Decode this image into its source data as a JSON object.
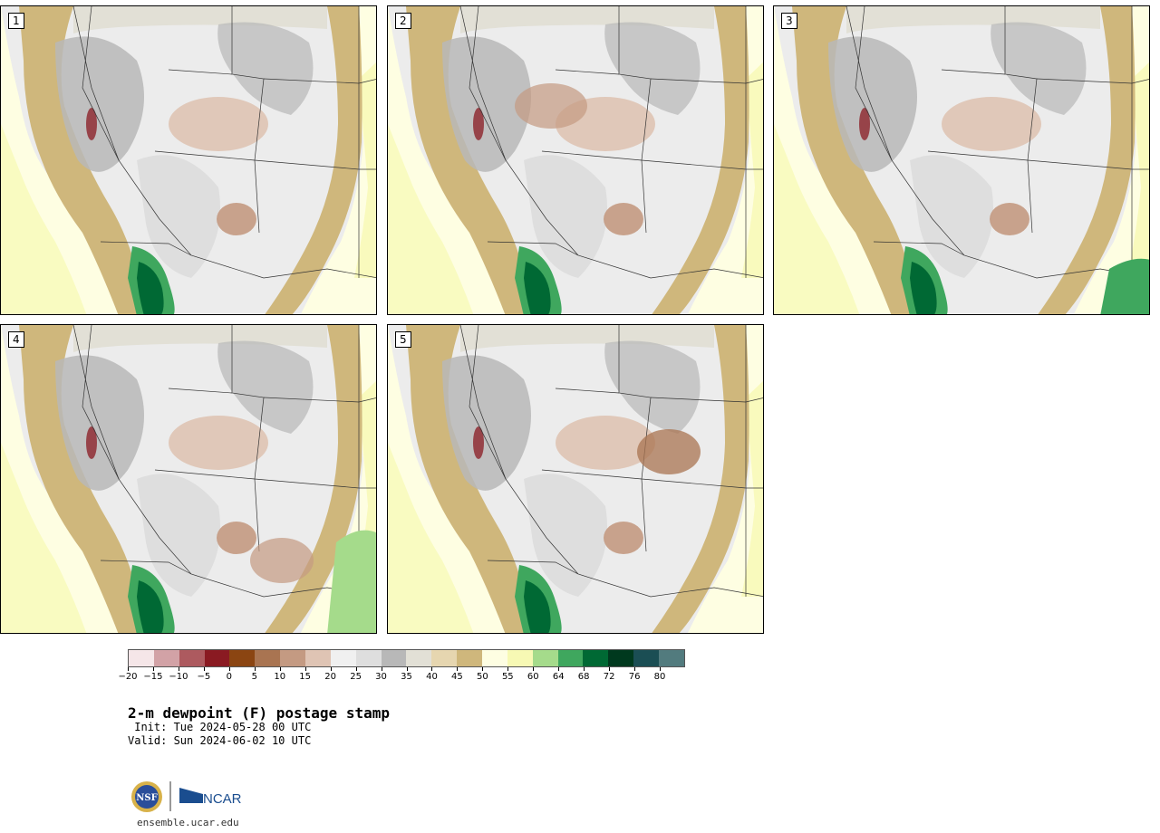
{
  "title": "2-m dewpoint (F) postage stamp",
  "init_text": " Init: Tue 2024-05-28 00 UTC",
  "valid_text": "Valid: Sun 2024-06-02 10 UTC",
  "footer_url": "ensemble.ucar.edu",
  "logo_nsf_text": "NSF",
  "logo_ncar_text": "NCAR",
  "panels": [
    {
      "label": "1"
    },
    {
      "label": "2"
    },
    {
      "label": "3"
    },
    {
      "label": "4"
    },
    {
      "label": "5"
    }
  ],
  "colorbar": {
    "colors": [
      "#f5e6e8",
      "#d2a2a6",
      "#ad5a5f",
      "#8a1a22",
      "#8b4512",
      "#a97451",
      "#c49a82",
      "#dfc4b4",
      "#f0f0f0",
      "#dedede",
      "#b8b8b8",
      "#e2e0d6",
      "#e6d6b0",
      "#cfb77c",
      "#fefee2",
      "#f7f9b4",
      "#a5db8b",
      "#3fa75e",
      "#006934",
      "#00391e",
      "#1b4e54",
      "#527b7e"
    ],
    "tick_labels": [
      "−20",
      "−15",
      "−10",
      "−5",
      "0",
      "5",
      "10",
      "15",
      "20",
      "25",
      "30",
      "35",
      "40",
      "45",
      "50",
      "55",
      "60",
      "64",
      "68",
      "72",
      "76",
      "80"
    ]
  }
}
